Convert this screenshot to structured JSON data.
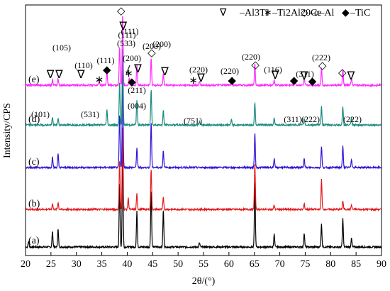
{
  "chart_data": {
    "type": "line",
    "xlabel": "2θ/(°)",
    "ylabel": "Intensity/CPS",
    "xlim": [
      20,
      90
    ],
    "x_ticks": [
      "20",
      "25",
      "30",
      "35",
      "40",
      "45",
      "50",
      "55",
      "60",
      "65",
      "70",
      "75",
      "80",
      "85",
      "90"
    ],
    "legend": [
      {
        "symbol": "∇",
        "label": "–Al3Ti"
      },
      {
        "symbol": "∗",
        "label": "–Ti2Al20Ce"
      },
      {
        "symbol": "◇",
        "label": "–α–Al"
      },
      {
        "symbol": "◆",
        "label": "–TiC"
      }
    ],
    "series": [
      {
        "name": "(a)",
        "color": "#000000",
        "baseline": 0,
        "peaks": [
          [
            20.6,
            8
          ],
          [
            25.3,
            22
          ],
          [
            26.4,
            25
          ],
          [
            38.5,
            90
          ],
          [
            39.1,
            140
          ],
          [
            41.9,
            50
          ],
          [
            44.7,
            80
          ],
          [
            47.1,
            52
          ],
          [
            54.2,
            6
          ],
          [
            65.1,
            92
          ],
          [
            68.9,
            18
          ],
          [
            74.8,
            20
          ],
          [
            78.2,
            32
          ],
          [
            82.4,
            40
          ],
          [
            84.1,
            12
          ]
        ]
      },
      {
        "name": "(b)",
        "color": "#e41a1c",
        "baseline": 1,
        "peaks": [
          [
            25.3,
            8
          ],
          [
            26.4,
            10
          ],
          [
            38.5,
            70
          ],
          [
            39.1,
            118
          ],
          [
            40.2,
            16
          ],
          [
            41.9,
            22
          ],
          [
            44.7,
            58
          ],
          [
            47.1,
            18
          ],
          [
            65.1,
            65
          ],
          [
            68.9,
            6
          ],
          [
            74.8,
            8
          ],
          [
            78.2,
            42
          ],
          [
            82.4,
            12
          ],
          [
            84.1,
            6
          ]
        ]
      },
      {
        "name": "(c)",
        "color": "#2f16d6",
        "baseline": 2,
        "peaks": [
          [
            25.3,
            15
          ],
          [
            26.4,
            19
          ],
          [
            38.5,
            75
          ],
          [
            39.1,
            135
          ],
          [
            41.9,
            28
          ],
          [
            44.7,
            64
          ],
          [
            47.1,
            24
          ],
          [
            65.1,
            48
          ],
          [
            68.9,
            12
          ],
          [
            74.8,
            14
          ],
          [
            78.2,
            30
          ],
          [
            82.4,
            30
          ],
          [
            84.1,
            12
          ]
        ]
      },
      {
        "name": "(d)",
        "color": "#1a8a80",
        "baseline": 3,
        "peaks": [
          [
            25.3,
            10
          ],
          [
            26.4,
            9
          ],
          [
            36.0,
            22
          ],
          [
            38.5,
            60
          ],
          [
            39.1,
            110
          ],
          [
            41.9,
            36
          ],
          [
            44.7,
            50
          ],
          [
            47.1,
            20
          ],
          [
            54.2,
            5
          ],
          [
            60.5,
            8
          ],
          [
            65.1,
            32
          ],
          [
            68.9,
            9
          ],
          [
            74.8,
            10
          ],
          [
            78.2,
            26
          ],
          [
            82.4,
            25
          ],
          [
            84.1,
            10
          ]
        ]
      },
      {
        "name": "(e)",
        "color": "#ff2bff",
        "baseline": 4,
        "peaks": [
          [
            25.3,
            8
          ],
          [
            26.4,
            9
          ],
          [
            34.5,
            6
          ],
          [
            36.0,
            20
          ],
          [
            38.5,
            55
          ],
          [
            39.1,
            100
          ],
          [
            40.4,
            10
          ],
          [
            41.9,
            28
          ],
          [
            44.7,
            38
          ],
          [
            47.1,
            16
          ],
          [
            54.2,
            5
          ],
          [
            60.5,
            7
          ],
          [
            65.1,
            30
          ],
          [
            68.9,
            8
          ],
          [
            73.0,
            6
          ],
          [
            74.8,
            9
          ],
          [
            78.2,
            24
          ],
          [
            82.4,
            22
          ],
          [
            84.1,
            9
          ]
        ]
      }
    ],
    "annotations": [
      {
        "text": "(101)",
        "x": 22.7,
        "series": "(d)"
      },
      {
        "text": "(531)",
        "x": 33.4,
        "series": "(d)"
      },
      {
        "text": "(004)",
        "x": 42.0,
        "series": "(d)"
      },
      {
        "text": "(751)",
        "x": 56.2,
        "series": "(d)"
      },
      {
        "text": "(311)",
        "x": 73.4,
        "series": "(d)"
      },
      {
        "text": "(222)",
        "x": 77.6,
        "series": "(d)"
      },
      {
        "text": "(222)",
        "x": 84.6,
        "series": "(d)"
      },
      {
        "text": "(105)",
        "x": 25.6,
        "series": "(e)"
      },
      {
        "text": "(110)",
        "x": 31.4,
        "series": "(e)"
      },
      {
        "text": "(111)",
        "x": 35.7,
        "series": "(e)"
      },
      {
        "text": "(111)",
        "x": 41.2,
        "series": "(e)"
      },
      {
        "text": "(111)",
        "x": 41.8,
        "series": "(e)"
      },
      {
        "text": "(533)",
        "x": 41.0,
        "series": "(e)"
      },
      {
        "text": "(200)",
        "x": 44.8,
        "series": "(e)"
      },
      {
        "text": "(200)",
        "x": 47.6,
        "series": "(e)"
      },
      {
        "text": "(200)",
        "x": 41.8,
        "series": "(e)"
      },
      {
        "text": "(211)",
        "x": 54.7,
        "series": "(e)"
      },
      {
        "text": "(220)",
        "x": 60.6,
        "series": "(e)"
      },
      {
        "text": "(220)",
        "x": 65.2,
        "series": "(e)"
      },
      {
        "text": "(220)",
        "x": 69.1,
        "series": "(e)"
      },
      {
        "text": "(116)",
        "x": 74.8,
        "series": "(e)"
      },
      {
        "text": "(311)",
        "x": 78.4,
        "series": "(e)"
      },
      {
        "text": "(222)",
        "x": 82.3,
        "series": "(e)"
      }
    ],
    "markers": [
      {
        "symbol": "∇",
        "x": 24.9,
        "series": "(e)"
      },
      {
        "symbol": "∇",
        "x": 26.6,
        "series": "(e)"
      },
      {
        "symbol": "∇",
        "x": 30.9,
        "series": "(e)"
      },
      {
        "symbol": "∗",
        "x": 34.5,
        "series": "(e)"
      },
      {
        "symbol": "◆",
        "x": 36.0,
        "series": "(e)"
      },
      {
        "symbol": "◇",
        "x": 38.8,
        "series": "(e)"
      },
      {
        "symbol": "∇",
        "x": 39.2,
        "series": "(e)"
      },
      {
        "symbol": "∗",
        "x": 40.3,
        "series": "(e)"
      },
      {
        "symbol": "◆",
        "x": 40.9,
        "series": "(e)"
      },
      {
        "symbol": "∇",
        "x": 42.1,
        "series": "(e)"
      },
      {
        "symbol": "◇",
        "x": 44.8,
        "series": "(e)"
      },
      {
        "symbol": "∇",
        "x": 47.4,
        "series": "(e)"
      },
      {
        "symbol": "∗",
        "x": 53.0,
        "series": "(e)"
      },
      {
        "symbol": "∇",
        "x": 54.5,
        "series": "(e)"
      },
      {
        "symbol": "◆",
        "x": 60.6,
        "series": "(e)"
      },
      {
        "symbol": "◇",
        "x": 65.2,
        "series": "(e)"
      },
      {
        "symbol": "∇",
        "x": 69.1,
        "series": "(e)"
      },
      {
        "symbol": "◆",
        "x": 72.8,
        "series": "(e)"
      },
      {
        "symbol": "∇",
        "x": 74.8,
        "series": "(e)"
      },
      {
        "symbol": "◆",
        "x": 76.4,
        "series": "(e)"
      },
      {
        "symbol": "◇",
        "x": 78.4,
        "series": "(e)"
      },
      {
        "symbol": "◇",
        "x": 82.3,
        "series": "(e)"
      },
      {
        "symbol": "∇",
        "x": 84.0,
        "series": "(e)"
      }
    ]
  }
}
